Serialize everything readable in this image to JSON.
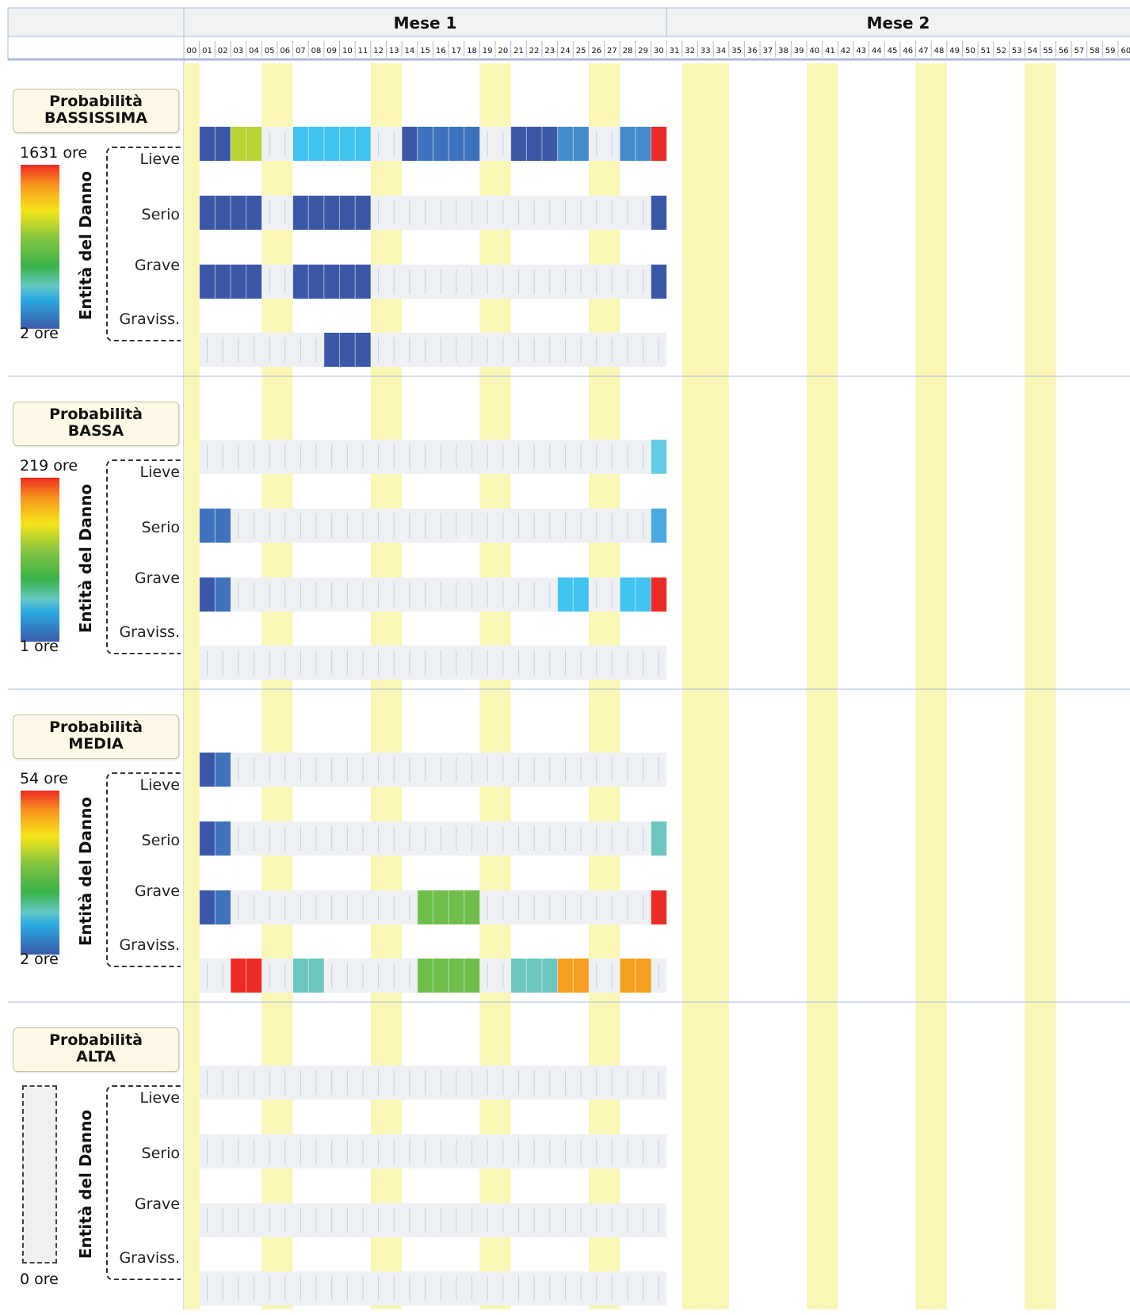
{
  "header": {
    "months": [
      "Mese 1",
      "Mese 2"
    ],
    "days": [
      "00",
      "01",
      "02",
      "03",
      "04",
      "05",
      "06",
      "07",
      "08",
      "09",
      "10",
      "11",
      "12",
      "13",
      "14",
      "15",
      "16",
      "17",
      "18",
      "19",
      "20",
      "21",
      "22",
      "23",
      "24",
      "25",
      "26",
      "27",
      "28",
      "29",
      "30",
      "31",
      "32",
      "33",
      "34",
      "35",
      "36",
      "37",
      "38",
      "39",
      "40",
      "41",
      "42",
      "43",
      "44",
      "45",
      "46",
      "47",
      "48",
      "49",
      "50",
      "51",
      "52",
      "53",
      "54",
      "55",
      "56",
      "57",
      "58",
      "59",
      "60"
    ]
  },
  "axis_title": "Entità del Danno",
  "severities": [
    "Lieve",
    "Serio",
    "Grave",
    "Graviss."
  ],
  "colors": {
    "empty_cell": "#eef0f3",
    "cell_divider": "#c3cfe6",
    "highlight_column": "#faf6b6",
    "panel_border": "#a9bbd6",
    "dark_blue": "#3b57a7",
    "mid_blue": "#3f72bd",
    "steel_blue": "#438bcb",
    "sky_blue": "#40c3ef",
    "light_blue": "#63cbe6",
    "cyan": "#4aa9df",
    "teal": "#6cc6c0",
    "green": "#6fbe4a",
    "yellow_green": "#b8d334",
    "orange": "#f59e1f",
    "red": "#ec2b26"
  },
  "chart_data": {
    "type": "heatmap",
    "title": "",
    "x": [
      "00",
      "01",
      "02",
      "03",
      "04",
      "05",
      "06",
      "07",
      "08",
      "09",
      "10",
      "11",
      "12",
      "13",
      "14",
      "15",
      "16",
      "17",
      "18",
      "19",
      "20",
      "21",
      "22",
      "23",
      "24",
      "25",
      "26",
      "27",
      "28",
      "29",
      "30",
      "31",
      "32",
      "33",
      "34",
      "35",
      "36",
      "37",
      "38",
      "39",
      "40",
      "41",
      "42",
      "43",
      "44",
      "45",
      "46",
      "47",
      "48",
      "49",
      "50",
      "51",
      "52",
      "53",
      "54",
      "55",
      "56",
      "57",
      "58",
      "59",
      "60"
    ],
    "x_groups": [
      "Mese 1",
      "Mese 2"
    ],
    "y_label": "Entità del Danno",
    "y": [
      "Lieve",
      "Serio",
      "Grave",
      "Graviss."
    ],
    "highlight_columns": [
      "00",
      "05",
      "06",
      "12",
      "13",
      "19",
      "20",
      "26",
      "27",
      "32",
      "33",
      "34",
      "40",
      "41",
      "47",
      "48",
      "54",
      "55"
    ],
    "panels": [
      {
        "probability_line1": "Probabilità",
        "probability_line2": "BASSISSIMA",
        "scale_max": "1631 ore",
        "scale_min": "2 ore",
        "rows": [
          {
            "severity": "Lieve",
            "cells": [
              [
                "01",
                "dark_blue"
              ],
              [
                "02",
                "dark_blue"
              ],
              [
                "03",
                "yellow_green"
              ],
              [
                "04",
                "yellow_green"
              ],
              [
                "07",
                "sky_blue"
              ],
              [
                "08",
                "sky_blue"
              ],
              [
                "09",
                "sky_blue"
              ],
              [
                "10",
                "sky_blue"
              ],
              [
                "11",
                "sky_blue"
              ],
              [
                "14",
                "dark_blue"
              ],
              [
                "15",
                "mid_blue"
              ],
              [
                "16",
                "mid_blue"
              ],
              [
                "17",
                "mid_blue"
              ],
              [
                "18",
                "mid_blue"
              ],
              [
                "21",
                "dark_blue"
              ],
              [
                "22",
                "dark_blue"
              ],
              [
                "23",
                "dark_blue"
              ],
              [
                "24",
                "steel_blue"
              ],
              [
                "25",
                "steel_blue"
              ],
              [
                "28",
                "steel_blue"
              ],
              [
                "29",
                "steel_blue"
              ],
              [
                "30",
                "red"
              ]
            ]
          },
          {
            "severity": "Serio",
            "cells": [
              [
                "01",
                "dark_blue"
              ],
              [
                "02",
                "dark_blue"
              ],
              [
                "03",
                "dark_blue"
              ],
              [
                "04",
                "dark_blue"
              ],
              [
                "07",
                "dark_blue"
              ],
              [
                "08",
                "dark_blue"
              ],
              [
                "09",
                "dark_blue"
              ],
              [
                "10",
                "dark_blue"
              ],
              [
                "11",
                "dark_blue"
              ],
              [
                "30",
                "dark_blue"
              ]
            ]
          },
          {
            "severity": "Grave",
            "cells": [
              [
                "01",
                "dark_blue"
              ],
              [
                "02",
                "dark_blue"
              ],
              [
                "03",
                "dark_blue"
              ],
              [
                "04",
                "dark_blue"
              ],
              [
                "07",
                "dark_blue"
              ],
              [
                "08",
                "dark_blue"
              ],
              [
                "09",
                "dark_blue"
              ],
              [
                "10",
                "dark_blue"
              ],
              [
                "11",
                "dark_blue"
              ],
              [
                "30",
                "dark_blue"
              ]
            ]
          },
          {
            "severity": "Graviss.",
            "cells": [
              [
                "09",
                "dark_blue"
              ],
              [
                "10",
                "dark_blue"
              ],
              [
                "11",
                "dark_blue"
              ]
            ]
          }
        ]
      },
      {
        "probability_line1": "Probabilità",
        "probability_line2": "BASSA",
        "scale_max": "219 ore",
        "scale_min": "1 ore",
        "rows": [
          {
            "severity": "Lieve",
            "cells": [
              [
                "30",
                "light_blue"
              ]
            ]
          },
          {
            "severity": "Serio",
            "cells": [
              [
                "01",
                "mid_blue"
              ],
              [
                "02",
                "mid_blue"
              ],
              [
                "30",
                "cyan"
              ]
            ]
          },
          {
            "severity": "Grave",
            "cells": [
              [
                "01",
                "dark_blue"
              ],
              [
                "02",
                "mid_blue"
              ],
              [
                "24",
                "sky_blue"
              ],
              [
                "25",
                "sky_blue"
              ],
              [
                "28",
                "sky_blue"
              ],
              [
                "29",
                "sky_blue"
              ],
              [
                "30",
                "red"
              ]
            ]
          },
          {
            "severity": "Graviss.",
            "cells": []
          }
        ]
      },
      {
        "probability_line1": "Probabilità",
        "probability_line2": "MEDIA",
        "scale_max": "54 ore",
        "scale_min": "2 ore",
        "rows": [
          {
            "severity": "Lieve",
            "cells": [
              [
                "01",
                "dark_blue"
              ],
              [
                "02",
                "mid_blue"
              ]
            ]
          },
          {
            "severity": "Serio",
            "cells": [
              [
                "01",
                "dark_blue"
              ],
              [
                "02",
                "mid_blue"
              ],
              [
                "30",
                "teal"
              ]
            ]
          },
          {
            "severity": "Grave",
            "cells": [
              [
                "01",
                "dark_blue"
              ],
              [
                "02",
                "mid_blue"
              ],
              [
                "15",
                "green"
              ],
              [
                "16",
                "green"
              ],
              [
                "17",
                "green"
              ],
              [
                "18",
                "green"
              ],
              [
                "30",
                "red"
              ]
            ]
          },
          {
            "severity": "Graviss.",
            "cells": [
              [
                "03",
                "red"
              ],
              [
                "04",
                "red"
              ],
              [
                "07",
                "teal"
              ],
              [
                "08",
                "teal"
              ],
              [
                "15",
                "green"
              ],
              [
                "16",
                "green"
              ],
              [
                "17",
                "green"
              ],
              [
                "18",
                "green"
              ],
              [
                "21",
                "teal"
              ],
              [
                "22",
                "teal"
              ],
              [
                "23",
                "teal"
              ],
              [
                "24",
                "orange"
              ],
              [
                "25",
                "orange"
              ],
              [
                "28",
                "orange"
              ],
              [
                "29",
                "orange"
              ]
            ]
          }
        ]
      },
      {
        "probability_line1": "Probabilità",
        "probability_line2": "ALTA",
        "scale_max": "",
        "scale_min": "0 ore",
        "rows": [
          {
            "severity": "Lieve",
            "cells": []
          },
          {
            "severity": "Serio",
            "cells": []
          },
          {
            "severity": "Grave",
            "cells": []
          },
          {
            "severity": "Graviss.",
            "cells": []
          }
        ]
      }
    ]
  }
}
